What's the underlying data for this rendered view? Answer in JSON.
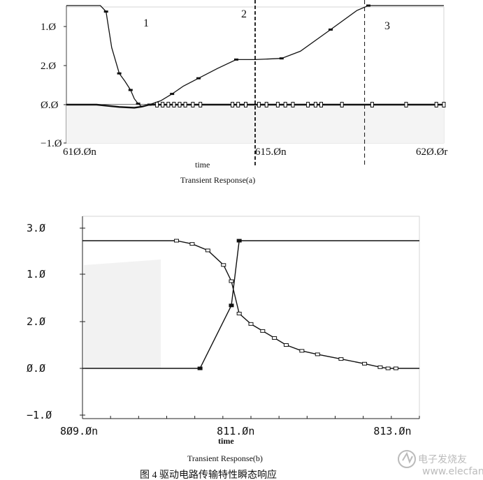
{
  "chart_data": [
    {
      "type": "line",
      "title": "Transient Response(a)",
      "xlabel": "time",
      "x_ticks": [
        "61Ø.Øn",
        "615.Øn",
        "62Ø.Ør"
      ],
      "y_ticks": [
        "1.Ø",
        "2.Ø",
        "Ø.Ø",
        "−1.Ø"
      ],
      "region_labels": [
        "1",
        "2",
        "3"
      ],
      "xlim": [
        610.0,
        620.0
      ],
      "ylim": [
        -1.0,
        2.5
      ],
      "series": [
        {
          "x": [
            610.0,
            610.9,
            611.05,
            611.2,
            611.4,
            611.55,
            611.7,
            611.8,
            611.9,
            612.0,
            612.2,
            612.5,
            612.8,
            613.1,
            613.5,
            614.0,
            614.5,
            615.0,
            615.7,
            616.2,
            617.0,
            617.7,
            618.0,
            620.0
          ],
          "y": [
            2.5,
            2.5,
            2.45,
            2.15,
            1.6,
            1.2,
            0.75,
            0.3,
            0.05,
            -0.05,
            0.0,
            0.2,
            0.55,
            0.95,
            1.35,
            1.85,
            2.05,
            2.05,
            2.06,
            2.12,
            2.3,
            2.46,
            2.5,
            2.5
          ]
        },
        {
          "x": [
            610.0,
            610.8,
            611.4,
            611.8,
            612.0,
            612.2,
            620.0
          ],
          "y": [
            0.0,
            0.0,
            -0.06,
            -0.08,
            -0.05,
            0.0,
            0.0
          ]
        }
      ],
      "markers_y0_x": [
        612.4,
        612.55,
        612.7,
        612.85,
        613.0,
        613.15,
        613.35,
        613.55,
        614.4,
        614.55,
        614.75,
        615.1,
        615.3,
        615.6,
        615.8,
        616.0,
        616.4,
        616.6,
        616.75,
        617.3,
        618.1,
        619.0,
        619.8,
        620.0
      ],
      "vlines_x": [
        615.0,
        617.9
      ]
    },
    {
      "type": "line",
      "title": "Transient Response(b)",
      "xlabel": "time",
      "x_ticks": [
        "8Ø9.Øn",
        "811.Øn",
        "813.Øn"
      ],
      "y_ticks": [
        "3.Ø",
        "1.Ø",
        "2.Ø",
        "Ø.Ø",
        "−1.Ø"
      ],
      "xlim": [
        809.0,
        813.3
      ],
      "ylim": [
        -1.0,
        3.0
      ],
      "series": [
        {
          "x": [
            809.0,
            810.5,
            810.9,
            811.0,
            813.3
          ],
          "y": [
            0.0,
            0.0,
            2.1,
            2.5,
            2.5
          ]
        },
        {
          "x": [
            809.0,
            810.2,
            810.4,
            810.6,
            810.8,
            810.9,
            811.0,
            811.15,
            811.3,
            811.45,
            811.6,
            811.8,
            812.0,
            812.3,
            812.6,
            812.8,
            812.9,
            813.0,
            813.3
          ],
          "y": [
            2.5,
            2.5,
            2.48,
            2.44,
            2.35,
            2.25,
            2.05,
            1.9,
            1.6,
            1.3,
            1.0,
            0.75,
            0.6,
            0.4,
            0.2,
            0.05,
            0.0,
            0.0,
            0.0
          ]
        }
      ]
    }
  ],
  "caption": "图 4 驱动电路传输特性瞬态响应",
  "watermark": "电子发烧友",
  "watermark_url": "www.elecfans.com"
}
